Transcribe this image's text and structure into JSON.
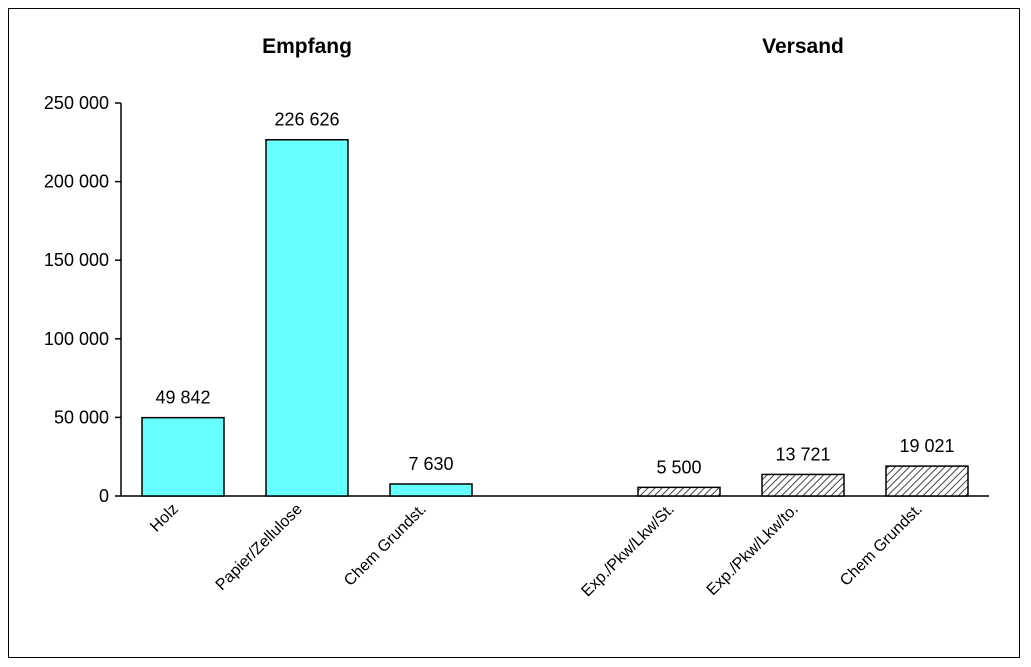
{
  "chart_data": {
    "type": "bar",
    "groups": [
      {
        "title": "Empfang",
        "categories": [
          "Holz",
          "Papier/Zellulose",
          "Chem Grundst."
        ],
        "values": [
          49842,
          226626,
          7630
        ],
        "value_labels": [
          "49 842",
          "226 626",
          "7 630"
        ],
        "fill": "#66ffff",
        "pattern": "solid"
      },
      {
        "title": "Versand",
        "categories": [
          "Exp./Pkw/Lkw/St.",
          "Exp./Pkw/Lkw/to.",
          "Chem Grundst."
        ],
        "values": [
          5500,
          13721,
          19021
        ],
        "value_labels": [
          "5 500",
          "13 721",
          "19 021"
        ],
        "fill": "#ffffff",
        "pattern": "diagonal-hatch"
      }
    ],
    "y_ticks": [
      0,
      50000,
      100000,
      150000,
      200000,
      250000
    ],
    "y_tick_labels": [
      "0",
      "50 000",
      "100 000",
      "150 000",
      "200 000",
      "250 000"
    ],
    "ylim": [
      0,
      250000
    ],
    "grid": false,
    "legend": "none"
  }
}
